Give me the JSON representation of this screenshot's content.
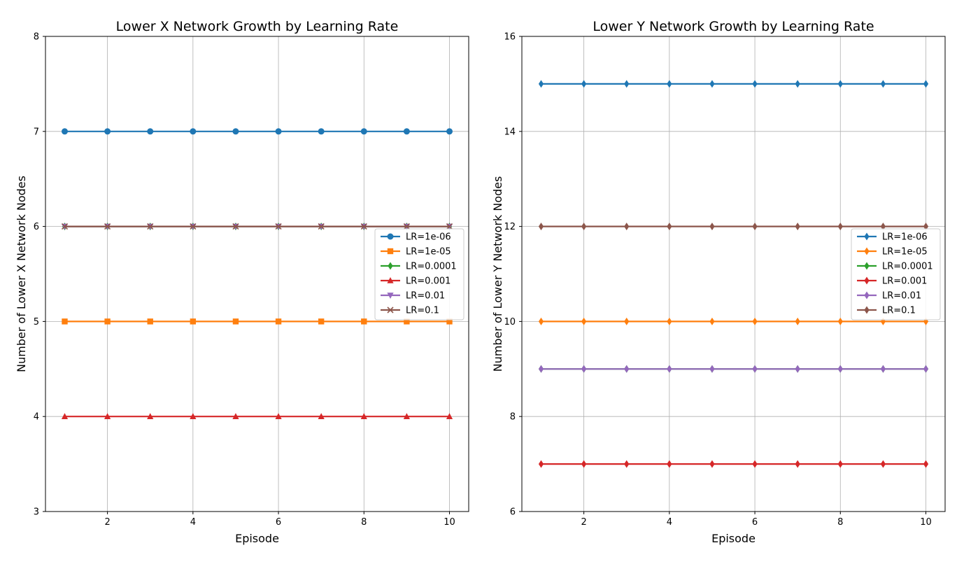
{
  "chart_data": [
    {
      "type": "line",
      "title": "Lower X Network Growth by Learning Rate",
      "xlabel": "Episode",
      "ylabel": "Number of Lower X Network Nodes",
      "x": [
        1,
        2,
        3,
        4,
        5,
        6,
        7,
        8,
        9,
        10
      ],
      "xlim": [
        0.55,
        10.45
      ],
      "ylim": [
        3,
        8
      ],
      "xticks": [
        2,
        4,
        6,
        8,
        10
      ],
      "yticks": [
        3,
        4,
        5,
        6,
        7,
        8
      ],
      "grid": true,
      "legend_position": "center-right",
      "series": [
        {
          "name": "LR=1e-06",
          "color": "#1f77b4",
          "marker": "circle",
          "values": [
            7,
            7,
            7,
            7,
            7,
            7,
            7,
            7,
            7,
            7
          ]
        },
        {
          "name": "LR=1e-05",
          "color": "#ff7f0e",
          "marker": "square",
          "values": [
            5,
            5,
            5,
            5,
            5,
            5,
            5,
            5,
            5,
            5
          ]
        },
        {
          "name": "LR=0.0001",
          "color": "#2ca02c",
          "marker": "thin-diamond",
          "values": [
            6,
            6,
            6,
            6,
            6,
            6,
            6,
            6,
            6,
            6
          ]
        },
        {
          "name": "LR=0.001",
          "color": "#d62728",
          "marker": "triangle-up",
          "values": [
            4,
            4,
            4,
            4,
            4,
            4,
            4,
            4,
            4,
            4
          ]
        },
        {
          "name": "LR=0.01",
          "color": "#9467bd",
          "marker": "triangle-down",
          "values": [
            6,
            6,
            6,
            6,
            6,
            6,
            6,
            6,
            6,
            6
          ]
        },
        {
          "name": "LR=0.1",
          "color": "#8c564b",
          "marker": "x",
          "values": [
            6,
            6,
            6,
            6,
            6,
            6,
            6,
            6,
            6,
            6
          ]
        }
      ]
    },
    {
      "type": "line",
      "title": "Lower Y Network Growth by Learning Rate",
      "xlabel": "Episode",
      "ylabel": "Number of Lower Y Network Nodes",
      "x": [
        1,
        2,
        3,
        4,
        5,
        6,
        7,
        8,
        9,
        10
      ],
      "xlim": [
        0.55,
        10.45
      ],
      "ylim": [
        6,
        16
      ],
      "xticks": [
        2,
        4,
        6,
        8,
        10
      ],
      "yticks": [
        6,
        8,
        10,
        12,
        14,
        16
      ],
      "grid": true,
      "legend_position": "center-right",
      "series": [
        {
          "name": "LR=1e-06",
          "color": "#1f77b4",
          "marker": "thin-diamond",
          "values": [
            15,
            15,
            15,
            15,
            15,
            15,
            15,
            15,
            15,
            15
          ]
        },
        {
          "name": "LR=1e-05",
          "color": "#ff7f0e",
          "marker": "thin-diamond",
          "values": [
            10,
            10,
            10,
            10,
            10,
            10,
            10,
            10,
            10,
            10
          ]
        },
        {
          "name": "LR=0.0001",
          "color": "#2ca02c",
          "marker": "thin-diamond",
          "values": [
            9,
            9,
            9,
            9,
            9,
            9,
            9,
            9,
            9,
            9
          ]
        },
        {
          "name": "LR=0.001",
          "color": "#d62728",
          "marker": "thin-diamond",
          "values": [
            7,
            7,
            7,
            7,
            7,
            7,
            7,
            7,
            7,
            7
          ]
        },
        {
          "name": "LR=0.01",
          "color": "#9467bd",
          "marker": "thin-diamond",
          "values": [
            9,
            9,
            9,
            9,
            9,
            9,
            9,
            9,
            9,
            9
          ]
        },
        {
          "name": "LR=0.1",
          "color": "#8c564b",
          "marker": "thin-diamond",
          "values": [
            12,
            12,
            12,
            12,
            12,
            12,
            12,
            12,
            12,
            12
          ]
        }
      ]
    }
  ]
}
